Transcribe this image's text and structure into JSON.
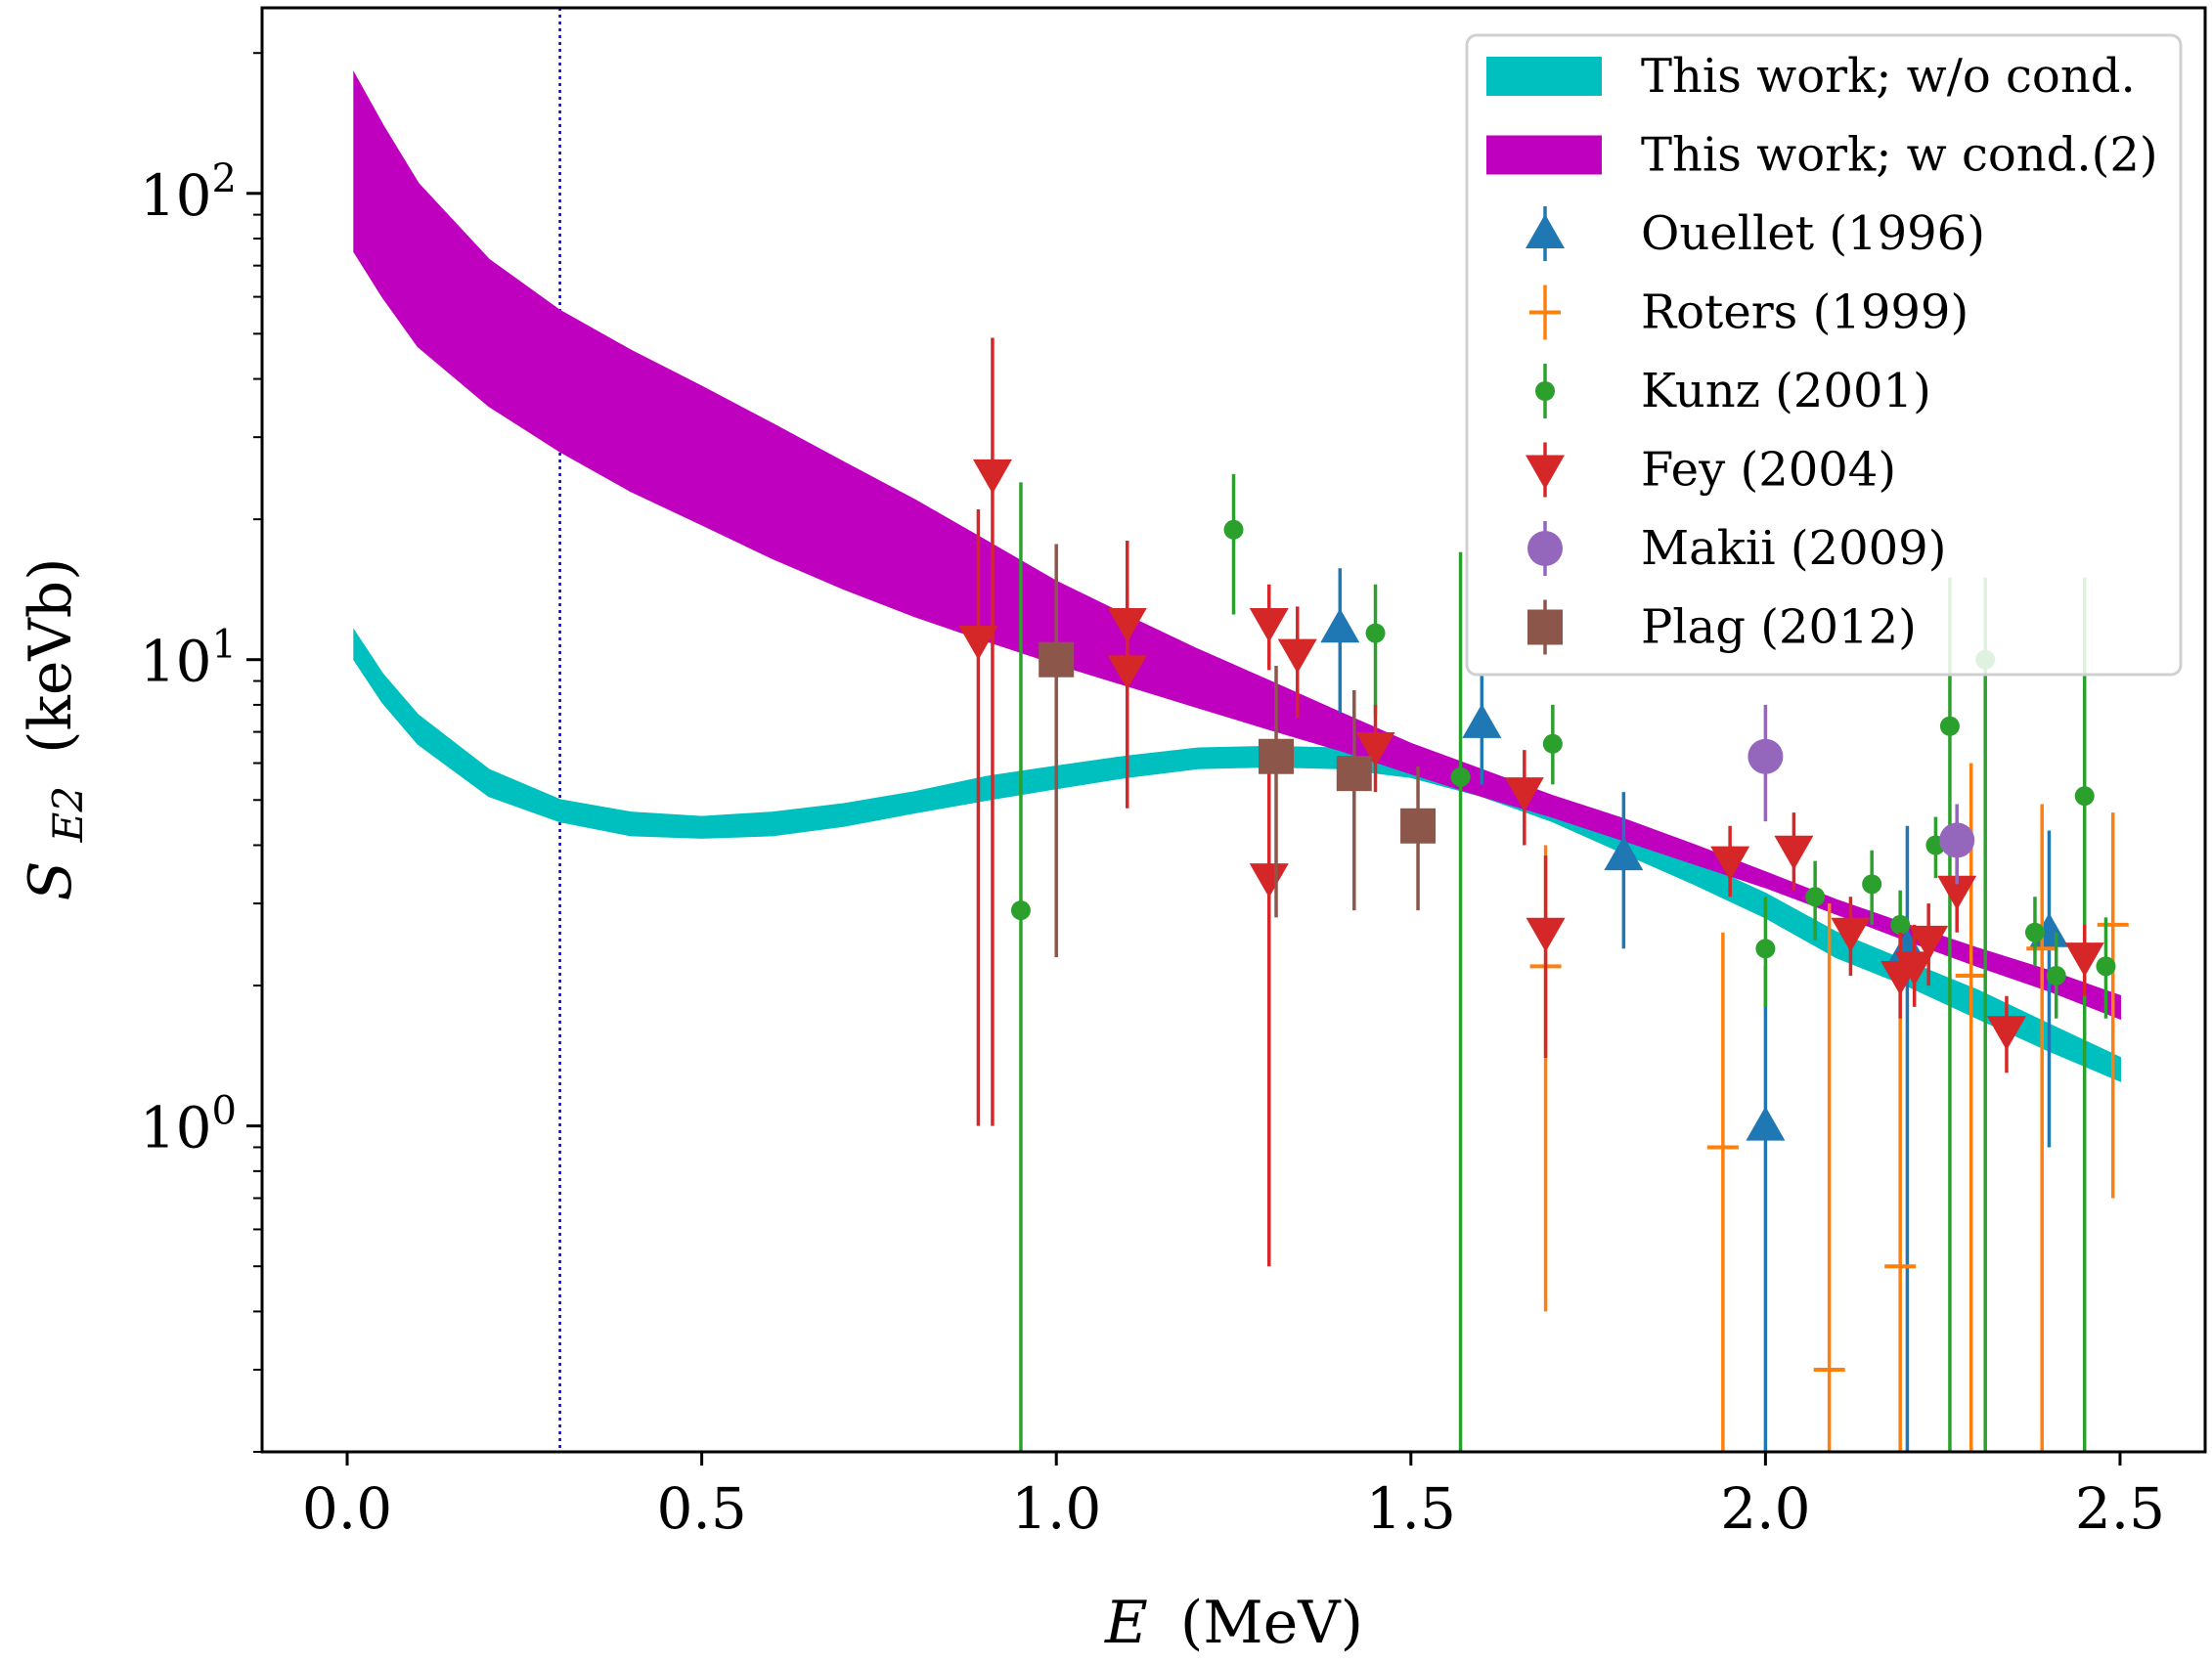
{
  "chart_data": {
    "type": "scatter",
    "xlabel": "E",
    "xlabel_unit": "(MeV)",
    "ylabel_main": "S",
    "ylabel_sub": "E2",
    "ylabel_unit": "(keVb)",
    "xlim": [
      -0.12,
      2.62
    ],
    "ylim": [
      0.2,
      250
    ],
    "yscale": "log",
    "grid": false,
    "legend_position": "top-right",
    "x_ticks": [
      {
        "value": 0.0,
        "label": "0.0"
      },
      {
        "value": 0.5,
        "label": "0.5"
      },
      {
        "value": 1.0,
        "label": "1.0"
      },
      {
        "value": 1.5,
        "label": "1.5"
      },
      {
        "value": 2.0,
        "label": "2.0"
      },
      {
        "value": 2.5,
        "label": "2.5"
      }
    ],
    "y_ticks": [
      {
        "value": 1,
        "base": "10",
        "exp": "0"
      },
      {
        "value": 10,
        "base": "10",
        "exp": "1"
      },
      {
        "value": 100,
        "base": "10",
        "exp": "2"
      }
    ],
    "vline": {
      "x": 0.3,
      "color": "#0000cc"
    },
    "bands": [
      {
        "name": "This work; w/o cond.",
        "color": "#00bfbf",
        "x": [
          0.01,
          0.05,
          0.1,
          0.2,
          0.3,
          0.4,
          0.5,
          0.6,
          0.7,
          0.8,
          0.9,
          1.0,
          1.1,
          1.2,
          1.3,
          1.4,
          1.5,
          1.6,
          1.7,
          1.8,
          1.9,
          2.0,
          2.1,
          2.2,
          2.3,
          2.4,
          2.5
        ],
        "lower": [
          10.0,
          8.1,
          6.6,
          5.1,
          4.5,
          4.2,
          4.15,
          4.2,
          4.4,
          4.7,
          5.0,
          5.3,
          5.6,
          5.85,
          5.9,
          5.85,
          5.6,
          5.1,
          4.5,
          3.85,
          3.3,
          2.8,
          2.3,
          2.0,
          1.7,
          1.45,
          1.25
        ],
        "upper": [
          11.5,
          9.3,
          7.6,
          5.8,
          5.0,
          4.7,
          4.6,
          4.7,
          4.9,
          5.2,
          5.6,
          5.9,
          6.2,
          6.45,
          6.5,
          6.45,
          6.2,
          5.7,
          5.0,
          4.3,
          3.7,
          3.15,
          2.6,
          2.25,
          1.95,
          1.65,
          1.4
        ]
      },
      {
        "name": "This work; w cond.(2)",
        "color": "#bf00bf",
        "x": [
          0.01,
          0.05,
          0.1,
          0.2,
          0.3,
          0.4,
          0.5,
          0.6,
          0.7,
          0.8,
          0.9,
          1.0,
          1.1,
          1.2,
          1.3,
          1.4,
          1.5,
          1.6,
          1.7,
          1.8,
          1.9,
          2.0,
          2.1,
          2.2,
          2.3,
          2.4,
          2.5
        ],
        "lower": [
          75,
          60,
          47,
          35,
          28,
          23,
          19.5,
          16.5,
          14.2,
          12.4,
          11.0,
          9.8,
          8.8,
          7.9,
          7.1,
          6.4,
          5.7,
          5.1,
          4.6,
          4.1,
          3.65,
          3.25,
          2.85,
          2.5,
          2.2,
          1.95,
          1.7
        ],
        "upper": [
          180,
          140,
          105,
          72,
          56,
          46,
          38.5,
          32,
          26.5,
          22,
          18,
          14.7,
          12.4,
          10.5,
          9.0,
          7.7,
          6.6,
          5.8,
          5.1,
          4.55,
          4.0,
          3.5,
          3.05,
          2.7,
          2.4,
          2.15,
          1.9
        ]
      }
    ],
    "series": [
      {
        "name": "Ouellet (1996)",
        "marker": "triangle-up",
        "color": "#1f77b4",
        "points": [
          {
            "x": 1.4,
            "y": 11.7,
            "ylo": 7.7,
            "yhi": 15.7
          },
          {
            "x": 1.6,
            "y": 7.3,
            "ylo": 5.4,
            "yhi": 9.3
          },
          {
            "x": 1.8,
            "y": 3.8,
            "ylo": 2.4,
            "yhi": 5.2
          },
          {
            "x": 2.0,
            "y": 1.0,
            "ylo": 0.2,
            "yhi": 2.2
          },
          {
            "x": 2.2,
            "y": 2.4,
            "ylo": 0.2,
            "yhi": 4.4
          },
          {
            "x": 2.4,
            "y": 2.6,
            "ylo": 0.9,
            "yhi": 4.3
          }
        ]
      },
      {
        "name": "Roters (1999)",
        "marker": "plus",
        "color": "#ff7f0e",
        "points": [
          {
            "x": 1.69,
            "y": 2.2,
            "ylo": 0.4,
            "yhi": 4.0
          },
          {
            "x": 1.94,
            "y": 0.9,
            "ylo": 0.2,
            "yhi": 2.6
          },
          {
            "x": 2.09,
            "y": 0.3,
            "ylo": 0.2,
            "yhi": 3.0
          },
          {
            "x": 2.19,
            "y": 0.5,
            "ylo": 0.2,
            "yhi": 2.4
          },
          {
            "x": 2.29,
            "y": 2.1,
            "ylo": 0.2,
            "yhi": 6.0
          },
          {
            "x": 2.39,
            "y": 2.4,
            "ylo": 0.2,
            "yhi": 4.9
          },
          {
            "x": 2.49,
            "y": 2.7,
            "ylo": 0.7,
            "yhi": 4.7
          }
        ]
      },
      {
        "name": "Kunz (2001)",
        "marker": "circle-small",
        "color": "#2ca02c",
        "points": [
          {
            "x": 0.95,
            "y": 2.9,
            "ylo": 0.2,
            "yhi": 24.0
          },
          {
            "x": 1.25,
            "y": 19.0,
            "ylo": 12.5,
            "yhi": 25.0
          },
          {
            "x": 1.45,
            "y": 11.4,
            "ylo": 7.6,
            "yhi": 14.5
          },
          {
            "x": 1.57,
            "y": 5.6,
            "ylo": 0.2,
            "yhi": 17.0
          },
          {
            "x": 1.7,
            "y": 6.6,
            "ylo": 5.4,
            "yhi": 8.0
          },
          {
            "x": 2.0,
            "y": 2.4,
            "ylo": 1.8,
            "yhi": 3.1
          },
          {
            "x": 2.07,
            "y": 3.1,
            "ylo": 2.5,
            "yhi": 3.7
          },
          {
            "x": 2.15,
            "y": 3.3,
            "ylo": 2.7,
            "yhi": 3.9
          },
          {
            "x": 2.19,
            "y": 2.7,
            "ylo": 2.3,
            "yhi": 3.2
          },
          {
            "x": 2.24,
            "y": 4.0,
            "ylo": 3.4,
            "yhi": 4.6
          },
          {
            "x": 2.26,
            "y": 7.2,
            "ylo": 0.2,
            "yhi": 15.0
          },
          {
            "x": 2.31,
            "y": 10.0,
            "ylo": 0.2,
            "yhi": 15.0
          },
          {
            "x": 2.38,
            "y": 2.6,
            "ylo": 2.2,
            "yhi": 3.1
          },
          {
            "x": 2.41,
            "y": 2.1,
            "ylo": 1.7,
            "yhi": 2.6
          },
          {
            "x": 2.45,
            "y": 5.1,
            "ylo": 0.2,
            "yhi": 15.0
          },
          {
            "x": 2.48,
            "y": 2.2,
            "ylo": 1.7,
            "yhi": 2.8
          }
        ]
      },
      {
        "name": "Fey (2004)",
        "marker": "triangle-down",
        "color": "#d62728",
        "points": [
          {
            "x": 0.89,
            "y": 11.0,
            "ylo": 1.0,
            "yhi": 21.0
          },
          {
            "x": 0.91,
            "y": 25.0,
            "ylo": 1.0,
            "yhi": 49.0
          },
          {
            "x": 1.1,
            "y": 12.0,
            "ylo": 6.2,
            "yhi": 18.0
          },
          {
            "x": 1.1,
            "y": 9.5,
            "ylo": 4.8,
            "yhi": 14.0
          },
          {
            "x": 1.3,
            "y": 12.0,
            "ylo": 9.5,
            "yhi": 14.5
          },
          {
            "x": 1.3,
            "y": 3.4,
            "ylo": 0.5,
            "yhi": 6.2
          },
          {
            "x": 1.34,
            "y": 10.3,
            "ylo": 7.5,
            "yhi": 13.0
          },
          {
            "x": 1.45,
            "y": 6.5,
            "ylo": 5.2,
            "yhi": 8.0
          },
          {
            "x": 1.66,
            "y": 5.2,
            "ylo": 4.0,
            "yhi": 6.4
          },
          {
            "x": 1.69,
            "y": 2.6,
            "ylo": 1.4,
            "yhi": 3.8
          },
          {
            "x": 1.95,
            "y": 3.7,
            "ylo": 3.1,
            "yhi": 4.4
          },
          {
            "x": 2.04,
            "y": 3.9,
            "ylo": 3.2,
            "yhi": 4.7
          },
          {
            "x": 2.12,
            "y": 2.6,
            "ylo": 2.1,
            "yhi": 3.1
          },
          {
            "x": 2.19,
            "y": 2.1,
            "ylo": 1.7,
            "yhi": 2.6
          },
          {
            "x": 2.21,
            "y": 2.2,
            "ylo": 1.8,
            "yhi": 2.7
          },
          {
            "x": 2.23,
            "y": 2.5,
            "ylo": 2.0,
            "yhi": 3.0
          },
          {
            "x": 2.27,
            "y": 3.2,
            "ylo": 2.6,
            "yhi": 3.8
          },
          {
            "x": 2.34,
            "y": 1.6,
            "ylo": 1.3,
            "yhi": 1.9
          },
          {
            "x": 2.45,
            "y": 2.3,
            "ylo": 1.9,
            "yhi": 2.7
          }
        ]
      },
      {
        "name": "Makii (2009)",
        "marker": "circle-large",
        "color": "#9467bd",
        "points": [
          {
            "x": 2.0,
            "y": 6.2,
            "ylo": 4.5,
            "yhi": 8.0
          },
          {
            "x": 2.27,
            "y": 4.1,
            "ylo": 3.3,
            "yhi": 4.9
          }
        ]
      },
      {
        "name": "Plag (2012)",
        "marker": "square",
        "color": "#8c564b",
        "points": [
          {
            "x": 1.0,
            "y": 10.0,
            "ylo": 2.3,
            "yhi": 17.7
          },
          {
            "x": 1.31,
            "y": 6.2,
            "ylo": 2.8,
            "yhi": 9.7
          },
          {
            "x": 1.42,
            "y": 5.7,
            "ylo": 2.9,
            "yhi": 8.6
          },
          {
            "x": 1.51,
            "y": 4.4,
            "ylo": 2.9,
            "yhi": 5.9
          }
        ]
      }
    ]
  }
}
